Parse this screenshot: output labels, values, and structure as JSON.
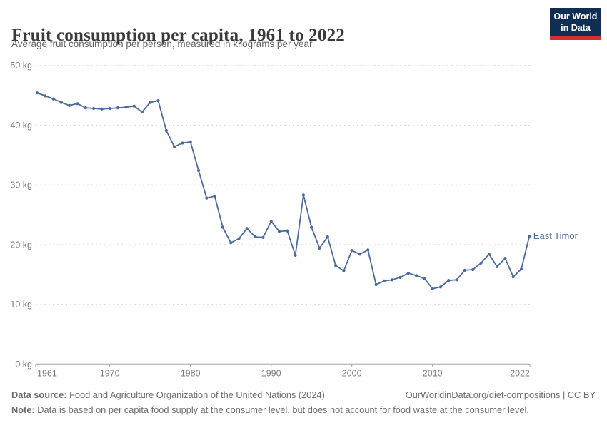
{
  "header": {
    "title": "Fruit consumption per capita, 1961 to 2022",
    "subtitle": "Average fruit consumption per person, measured in kilograms per year.",
    "logo": {
      "line1": "Our World",
      "line2": "in Data"
    }
  },
  "colors": {
    "series": "#4C6B9C",
    "logo_bg": "#0f2e52",
    "logo_stripe": "#d0342c",
    "grid": "#d8d8d8",
    "axis": "#a3a3a3",
    "tick_text": "#7d7d7d"
  },
  "chart_data": {
    "type": "line",
    "title": "Fruit consumption per capita, 1961 to 2022",
    "xlabel": "",
    "ylabel": "kilograms per year",
    "xlim": [
      1961,
      2022
    ],
    "ylim": [
      0,
      50
    ],
    "x_ticks": [
      1961,
      1970,
      1980,
      1990,
      2000,
      2010,
      2022
    ],
    "y_ticks": [
      0,
      10,
      20,
      30,
      40,
      50
    ],
    "y_tick_suffix": " kg",
    "grid": "horizontal-dashed",
    "legend_position": "end-of-line-label",
    "series": [
      {
        "name": "East Timor",
        "color": "#4C6B9C",
        "x": [
          1961,
          1962,
          1963,
          1964,
          1965,
          1966,
          1967,
          1968,
          1969,
          1970,
          1971,
          1972,
          1973,
          1974,
          1975,
          1976,
          1977,
          1978,
          1979,
          1980,
          1981,
          1982,
          1983,
          1984,
          1985,
          1986,
          1987,
          1988,
          1989,
          1990,
          1991,
          1992,
          1993,
          1994,
          1995,
          1996,
          1997,
          1998,
          1999,
          2000,
          2001,
          2002,
          2003,
          2004,
          2005,
          2006,
          2007,
          2008,
          2009,
          2010,
          2011,
          2012,
          2013,
          2014,
          2015,
          2016,
          2017,
          2018,
          2019,
          2020,
          2021,
          2022
        ],
        "values": [
          45.4,
          44.9,
          44.4,
          43.8,
          43.3,
          43.6,
          42.9,
          42.8,
          42.7,
          42.8,
          42.9,
          43.0,
          43.2,
          42.2,
          43.8,
          44.1,
          39.1,
          36.4,
          37.0,
          37.2,
          32.4,
          27.8,
          28.1,
          22.9,
          20.3,
          21.0,
          22.7,
          21.3,
          21.2,
          23.9,
          22.2,
          22.3,
          18.2,
          28.3,
          22.9,
          19.4,
          21.3,
          16.5,
          15.6,
          19.0,
          18.4,
          19.1,
          13.3,
          13.9,
          14.1,
          14.5,
          15.2,
          14.8,
          14.3,
          12.6,
          12.9,
          14.0,
          14.1,
          15.7,
          15.8,
          16.9,
          18.4,
          16.3,
          17.7,
          14.6,
          15.9,
          21.4
        ]
      }
    ]
  },
  "footer": {
    "source_label": "Data source:",
    "source_text": " Food and Agriculture Organization of the United Nations (2024)",
    "rights": "OurWorldinData.org/diet-compositions | CC BY",
    "note_label": "Note:",
    "note_text": " Data is based on per capita food supply at the consumer level, but does not account for food waste at the consumer level."
  }
}
